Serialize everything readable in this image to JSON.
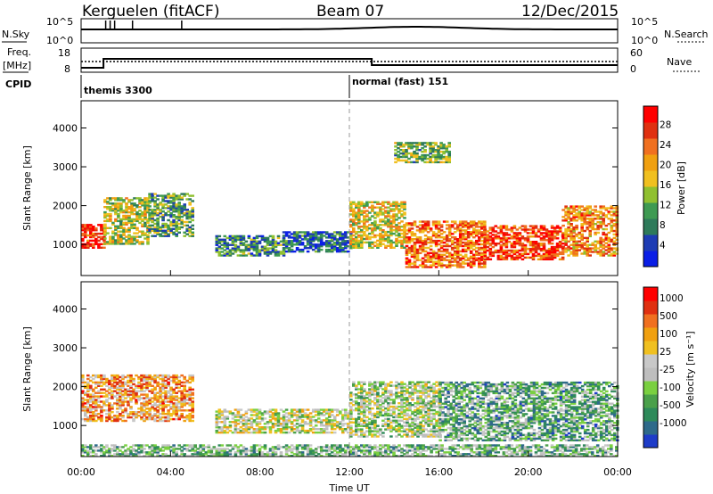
{
  "header": {
    "station": "Kerguelen (fitACF)",
    "beam": "Beam 07",
    "date": "12/Dec/2015"
  },
  "noise_panel": {
    "left_label": "N.Sky",
    "right_label": "N.Search",
    "left_ticks": [
      "10^5",
      "10^0"
    ],
    "right_ticks": [
      "10^5",
      "10^0"
    ]
  },
  "freq_panel": {
    "left_label_1": "Freq.",
    "left_label_2": "[MHz]",
    "right_label": "Nave",
    "left_ticks": [
      "18",
      "8"
    ],
    "right_ticks": [
      "60",
      "0"
    ]
  },
  "cpid": {
    "label": "CPID",
    "entries": [
      {
        "text": "themis 3300",
        "start_hour": 0
      },
      {
        "text": "normal (fast) 151",
        "start_hour": 12
      }
    ]
  },
  "chart_data": [
    {
      "type": "heatmap",
      "panel": "power",
      "x_ticks": [
        "00:00",
        "04:00",
        "08:00",
        "12:00",
        "16:00",
        "20:00",
        "00:00"
      ],
      "xlim_hours": [
        0,
        24
      ],
      "ylabel": "Slant Range [km]",
      "y_ticks": [
        1000,
        2000,
        3000,
        4000
      ],
      "ylim": [
        200,
        4700
      ],
      "colorbar": {
        "label": "Power [dB]",
        "ticks": [
          "4",
          "8",
          "12",
          "16",
          "20",
          "24",
          "28"
        ],
        "colors": [
          "#0a1ee6",
          "#1e3cb4",
          "#2e7a5a",
          "#3e9a52",
          "#90c030",
          "#f0c020",
          "#f0a010",
          "#f07020",
          "#e03010",
          "#ff0000"
        ]
      },
      "patches": [
        {
          "t0": 0.0,
          "t1": 1.0,
          "r0": 900,
          "r1": 1500,
          "level": 0.9
        },
        {
          "t0": 1.0,
          "t1": 3.0,
          "r0": 1000,
          "r1": 2200,
          "level": 0.5
        },
        {
          "t0": 3.0,
          "t1": 5.0,
          "r0": 1200,
          "r1": 2300,
          "level": 0.35
        },
        {
          "t0": 6.0,
          "t1": 9.0,
          "r0": 700,
          "r1": 1200,
          "level": 0.3
        },
        {
          "t0": 9.0,
          "t1": 12.0,
          "r0": 800,
          "r1": 1300,
          "level": 0.2
        },
        {
          "t0": 12.0,
          "t1": 14.5,
          "r0": 900,
          "r1": 2100,
          "level": 0.55
        },
        {
          "t0": 14.5,
          "t1": 18.0,
          "r0": 400,
          "r1": 1600,
          "level": 0.75
        },
        {
          "t0": 18.0,
          "t1": 21.5,
          "r0": 600,
          "r1": 1500,
          "level": 0.85
        },
        {
          "t0": 21.5,
          "t1": 24.0,
          "r0": 700,
          "r1": 2000,
          "level": 0.7
        },
        {
          "t0": 14.0,
          "t1": 16.5,
          "r0": 3100,
          "r1": 3600,
          "level": 0.4
        }
      ]
    },
    {
      "type": "heatmap",
      "panel": "velocity",
      "x_ticks": [
        "00:00",
        "04:00",
        "08:00",
        "12:00",
        "16:00",
        "20:00",
        "00:00"
      ],
      "xlim_hours": [
        0,
        24
      ],
      "xlabel": "Time UT",
      "ylabel": "Slant Range [km]",
      "y_ticks": [
        1000,
        2000,
        3000,
        4000
      ],
      "ylim": [
        200,
        4700
      ],
      "colorbar": {
        "label": "Velocity [m s⁻¹]",
        "ticks": [
          "1000",
          "500",
          "100",
          "25",
          "-25",
          "-100",
          "-500",
          "-1000"
        ],
        "colors": [
          "#1e3cc8",
          "#2e6a8a",
          "#2e8a5a",
          "#4aa04a",
          "#7ad040",
          "#bebebe",
          "#c8c8c8",
          "#f0c020",
          "#f0a010",
          "#f07020",
          "#e03010",
          "#ff0000"
        ]
      },
      "patches": [
        {
          "t0": 0.0,
          "t1": 5.0,
          "r0": 1100,
          "r1": 2300,
          "level": 0.7
        },
        {
          "t0": 6.0,
          "t1": 12.0,
          "r0": 800,
          "r1": 1400,
          "level": 0.5
        },
        {
          "t0": 12.0,
          "t1": 16.0,
          "r0": 700,
          "r1": 2100,
          "level": 0.45
        },
        {
          "t0": 16.0,
          "t1": 24.0,
          "r0": 600,
          "r1": 2100,
          "level": 0.3
        },
        {
          "t0": 0.0,
          "t1": 24.0,
          "r0": 200,
          "r1": 500,
          "level": 0.35
        }
      ]
    }
  ]
}
